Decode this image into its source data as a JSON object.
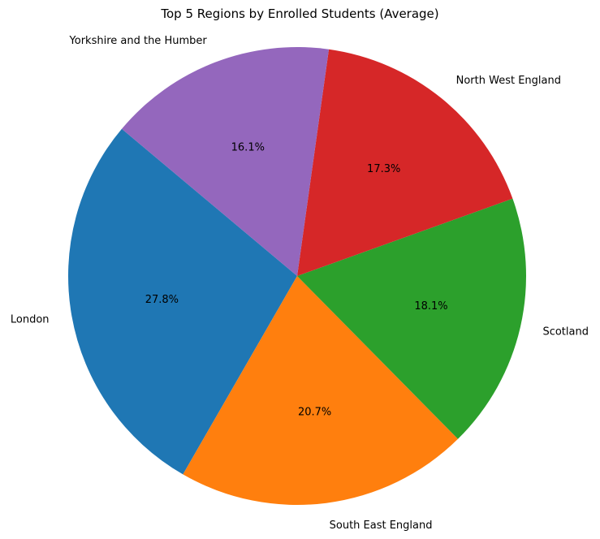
{
  "chart_data": {
    "type": "pie",
    "title": "Top 5 Regions by Enrolled Students (Average)",
    "start_angle_deg": 140,
    "direction": "counterclockwise",
    "slices": [
      {
        "label": "London",
        "value": 27.8,
        "pct_label": "27.8%",
        "color": "#1f77b4"
      },
      {
        "label": "South East England",
        "value": 20.7,
        "pct_label": "20.7%",
        "color": "#ff7f0e"
      },
      {
        "label": "Scotland",
        "value": 18.1,
        "pct_label": "18.1%",
        "color": "#2ca02c"
      },
      {
        "label": "North West England",
        "value": 17.3,
        "pct_label": "17.3%",
        "color": "#d62728"
      },
      {
        "label": "Yorkshire and the Humber",
        "value": 16.1,
        "pct_label": "16.1%",
        "color": "#9467bd"
      }
    ]
  }
}
